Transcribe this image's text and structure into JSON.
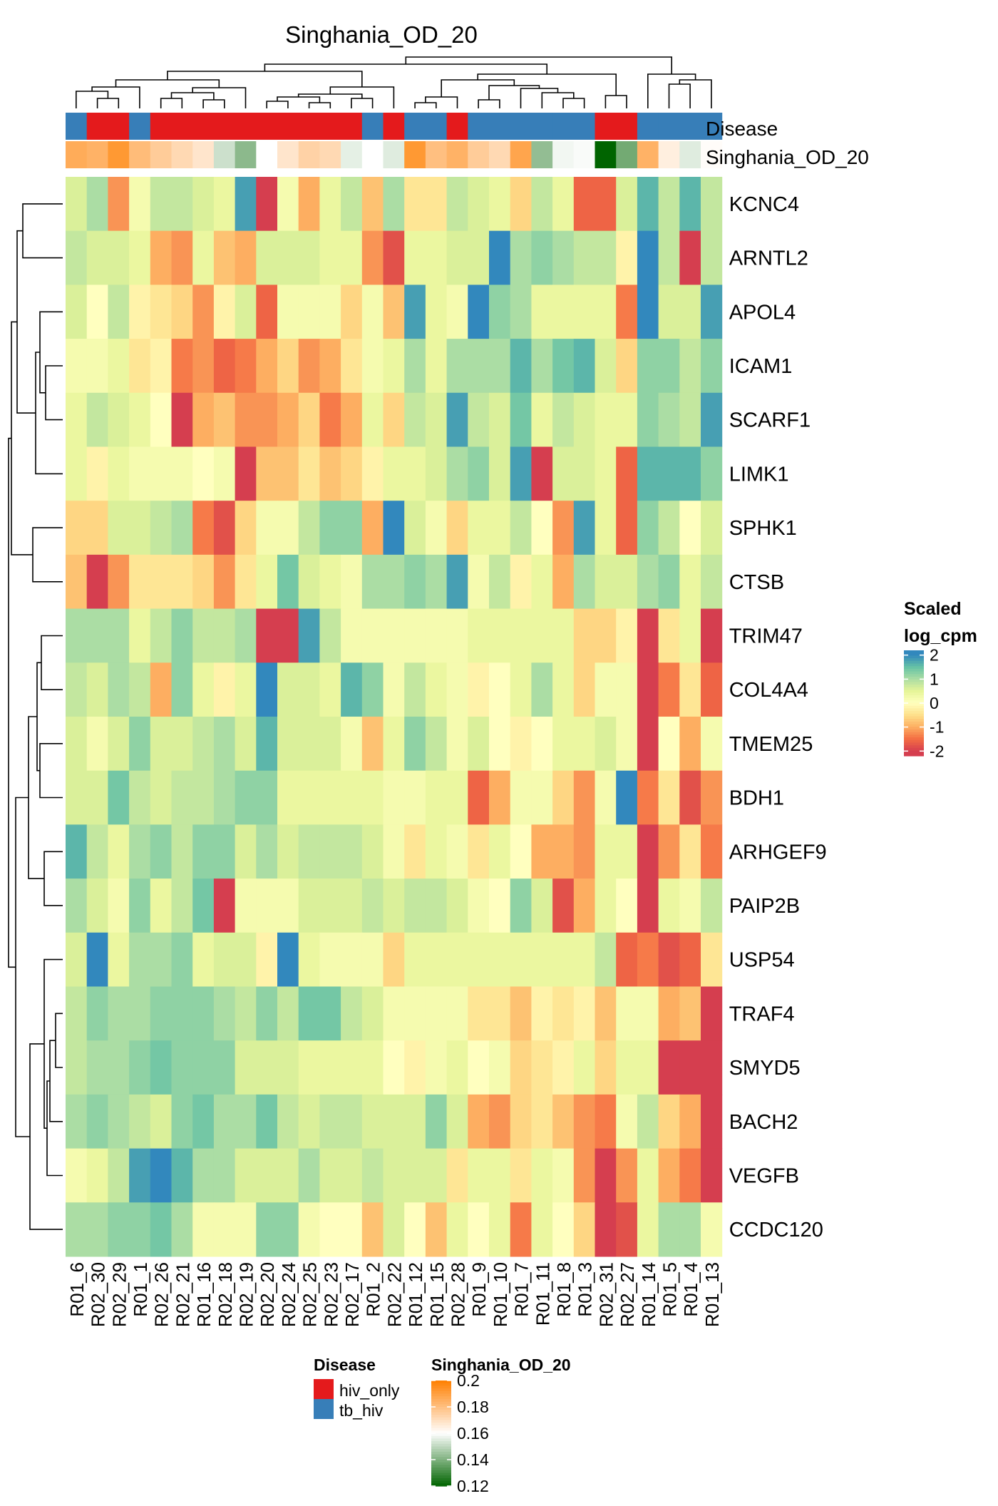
{
  "chart_data": {
    "type": "heatmap",
    "title": "Singhania_OD_20",
    "annotation_rows": [
      "Disease",
      "Singhania_OD_20"
    ],
    "columns": [
      "R01_6",
      "R02_30",
      "R02_29",
      "R01_1",
      "R02_26",
      "R02_21",
      "R01_16",
      "R02_18",
      "R02_19",
      "R02_20",
      "R02_24",
      "R02_25",
      "R02_23",
      "R02_17",
      "R01_2",
      "R02_22",
      "R01_12",
      "R01_15",
      "R02_28",
      "R01_9",
      "R01_10",
      "R01_7",
      "R01_11",
      "R01_8",
      "R01_3",
      "R02_31",
      "R02_27",
      "R01_14",
      "R01_5",
      "R01_4",
      "R01_13"
    ],
    "rows": [
      "KCNC4",
      "ARNTL2",
      "APOL4",
      "ICAM1",
      "SCARF1",
      "LIMK1",
      "SPHK1",
      "CTSB",
      "TRIM47",
      "COL4A4",
      "TMEM25",
      "BDH1",
      "ARHGEF9",
      "PAIP2B",
      "USP54",
      "TRAF4",
      "SMYD5",
      "BACH2",
      "VEGFB",
      "CCDC120"
    ],
    "disease": [
      "tb_hiv",
      "hiv_only",
      "hiv_only",
      "tb_hiv",
      "hiv_only",
      "hiv_only",
      "hiv_only",
      "hiv_only",
      "hiv_only",
      "hiv_only",
      "hiv_only",
      "hiv_only",
      "hiv_only",
      "hiv_only",
      "tb_hiv",
      "hiv_only",
      "tb_hiv",
      "tb_hiv",
      "hiv_only",
      "tb_hiv",
      "tb_hiv",
      "tb_hiv",
      "tb_hiv",
      "tb_hiv",
      "tb_hiv",
      "hiv_only",
      "hiv_only",
      "tb_hiv",
      "tb_hiv",
      "tb_hiv",
      "tb_hiv"
    ],
    "score": [
      0.186,
      0.184,
      0.192,
      0.181,
      0.176,
      0.172,
      0.168,
      0.152,
      0.142,
      0.16,
      0.168,
      0.174,
      0.172,
      0.156,
      0.16,
      0.155,
      0.192,
      0.18,
      0.184,
      0.176,
      0.172,
      0.188,
      0.143,
      0.158,
      0.159,
      0.12,
      0.138,
      0.184,
      0.165,
      0.155,
      0.161
    ],
    "values": [
      [
        0.6,
        1.0,
        -1.2,
        0.2,
        0.8,
        0.8,
        0.6,
        0.4,
        1.8,
        -2.0,
        0.2,
        -1.0,
        0.4,
        0.8,
        -0.8,
        1.0,
        -0.4,
        -0.4,
        0.8,
        0.6,
        0.4,
        -0.6,
        0.8,
        0.4,
        -1.6,
        -1.6,
        0.6,
        1.6,
        0.8,
        1.6,
        0.8
      ],
      [
        0.8,
        0.6,
        0.6,
        0.4,
        -1.0,
        -1.2,
        0.4,
        -0.8,
        -1.0,
        0.6,
        0.6,
        0.6,
        0.4,
        0.4,
        -1.2,
        -1.8,
        0.4,
        0.4,
        0.6,
        0.6,
        2.0,
        1.0,
        1.2,
        1.0,
        0.8,
        0.8,
        -0.2,
        2.0,
        0.8,
        -2.0,
        0.8
      ],
      [
        0.6,
        0.0,
        0.8,
        -0.2,
        -0.4,
        -0.6,
        -1.2,
        -0.2,
        0.6,
        -1.6,
        0.2,
        0.2,
        0.2,
        -0.6,
        0.2,
        -0.8,
        1.8,
        0.4,
        0.2,
        2.0,
        1.2,
        1.0,
        0.4,
        0.4,
        0.4,
        0.4,
        -1.4,
        2.2,
        0.6,
        0.6,
        1.8
      ],
      [
        0.2,
        0.2,
        0.4,
        -0.4,
        -0.2,
        -1.4,
        -1.2,
        -1.6,
        -1.4,
        -1.0,
        -0.6,
        -1.2,
        -1.0,
        -0.4,
        0.2,
        0.4,
        1.0,
        0.4,
        1.0,
        1.0,
        1.0,
        1.6,
        1.0,
        1.4,
        1.6,
        0.6,
        -0.6,
        1.2,
        1.2,
        0.8,
        1.2
      ],
      [
        0.4,
        0.8,
        0.6,
        0.4,
        0.0,
        -2.0,
        -1.0,
        -0.8,
        -1.2,
        -1.2,
        -1.0,
        -0.6,
        -1.4,
        -1.0,
        0.4,
        -0.6,
        0.8,
        0.6,
        1.8,
        0.8,
        0.6,
        1.4,
        0.4,
        0.8,
        0.6,
        0.4,
        0.4,
        1.2,
        1.0,
        0.8,
        1.8
      ],
      [
        0.4,
        -0.2,
        0.4,
        0.2,
        0.2,
        0.2,
        0.0,
        0.2,
        -2.0,
        -0.8,
        -0.8,
        -0.4,
        -0.8,
        -0.6,
        -0.2,
        0.4,
        0.4,
        0.6,
        1.0,
        1.2,
        0.6,
        1.8,
        -2.0,
        0.6,
        0.6,
        0.4,
        -1.6,
        1.6,
        1.6,
        1.6,
        1.2
      ],
      [
        -0.6,
        -0.6,
        0.6,
        0.6,
        0.8,
        1.0,
        -1.4,
        -1.8,
        -0.6,
        0.2,
        0.2,
        0.8,
        1.2,
        1.2,
        -1.0,
        2.0,
        0.6,
        0.2,
        -0.6,
        0.4,
        0.4,
        0.8,
        0.0,
        -1.2,
        1.8,
        0.4,
        -1.6,
        1.2,
        0.8,
        0.0,
        0.6
      ],
      [
        -0.8,
        -2.0,
        -1.2,
        -0.4,
        -0.4,
        -0.4,
        -0.6,
        -1.2,
        -0.4,
        0.4,
        1.4,
        0.6,
        0.4,
        0.2,
        1.0,
        1.0,
        1.2,
        1.0,
        1.8,
        0.2,
        0.8,
        -0.2,
        0.4,
        -1.0,
        1.0,
        0.6,
        0.6,
        1.0,
        1.2,
        0.4,
        0.8
      ],
      [
        1.0,
        1.0,
        1.0,
        0.4,
        0.8,
        1.2,
        0.8,
        0.8,
        1.0,
        -2.0,
        -2.0,
        1.8,
        0.8,
        0.2,
        0.2,
        0.2,
        0.2,
        0.2,
        0.2,
        0.4,
        0.4,
        0.4,
        0.4,
        0.4,
        -0.6,
        -0.6,
        -0.2,
        -2.0,
        -0.4,
        0.4,
        -2.0
      ],
      [
        0.8,
        0.6,
        1.0,
        0.8,
        -1.0,
        1.2,
        0.4,
        -0.2,
        0.4,
        2.2,
        0.6,
        0.6,
        0.4,
        1.6,
        1.2,
        0.2,
        0.8,
        0.4,
        0.2,
        -0.2,
        0.0,
        0.4,
        1.0,
        0.4,
        -0.6,
        0.2,
        0.2,
        -2.0,
        -1.4,
        -0.4,
        -1.6
      ],
      [
        0.6,
        0.2,
        0.6,
        1.2,
        0.6,
        0.6,
        0.8,
        1.0,
        0.6,
        1.6,
        0.6,
        0.6,
        0.6,
        0.2,
        -0.8,
        0.4,
        1.2,
        0.8,
        0.2,
        0.6,
        0.0,
        -0.2,
        0.0,
        0.4,
        0.4,
        0.6,
        0.2,
        -2.0,
        0.0,
        -1.0,
        0.2
      ],
      [
        0.6,
        0.6,
        1.4,
        0.8,
        0.6,
        0.8,
        0.8,
        1.0,
        1.2,
        1.2,
        0.4,
        0.4,
        0.4,
        0.4,
        0.4,
        0.2,
        0.2,
        0.4,
        0.4,
        -1.6,
        -1.0,
        0.2,
        0.2,
        -0.6,
        -1.2,
        0.2,
        2.0,
        -1.4,
        -0.4,
        -1.8,
        -1.2
      ],
      [
        1.6,
        0.8,
        0.4,
        1.0,
        1.2,
        0.8,
        1.2,
        1.2,
        0.6,
        1.0,
        0.6,
        0.8,
        0.8,
        0.8,
        0.6,
        0.2,
        -0.4,
        0.4,
        0.2,
        -0.4,
        0.4,
        0.0,
        -1.0,
        -1.0,
        -1.2,
        0.4,
        0.4,
        -2.0,
        -1.2,
        -0.4,
        -1.4
      ],
      [
        1.0,
        0.6,
        0.2,
        1.2,
        0.4,
        0.8,
        1.4,
        -2.0,
        0.2,
        0.2,
        0.2,
        0.6,
        0.6,
        0.6,
        0.8,
        0.6,
        0.8,
        0.8,
        0.6,
        0.2,
        0.0,
        1.2,
        0.6,
        -1.8,
        -1.0,
        0.4,
        0.0,
        -2.0,
        0.4,
        0.2,
        0.8
      ],
      [
        0.6,
        2.0,
        0.4,
        1.0,
        1.0,
        1.2,
        0.4,
        0.6,
        0.6,
        -0.2,
        2.0,
        0.4,
        0.2,
        0.2,
        0.2,
        -0.6,
        0.4,
        0.4,
        0.4,
        0.4,
        0.4,
        0.4,
        0.4,
        0.4,
        0.4,
        0.8,
        -1.6,
        -1.4,
        -1.8,
        -1.6,
        -0.4
      ],
      [
        0.8,
        1.2,
        1.0,
        1.0,
        1.2,
        1.2,
        1.2,
        1.0,
        0.8,
        1.2,
        0.8,
        1.4,
        1.4,
        0.8,
        0.6,
        0.2,
        0.2,
        0.2,
        0.2,
        -0.4,
        -0.4,
        -0.8,
        -0.2,
        -0.4,
        -0.2,
        -0.8,
        0.2,
        0.2,
        -1.0,
        -0.8,
        -2.0
      ],
      [
        0.8,
        1.0,
        1.0,
        1.2,
        1.4,
        1.2,
        1.2,
        1.2,
        0.6,
        0.6,
        0.6,
        0.4,
        0.4,
        0.4,
        0.4,
        0.0,
        -0.2,
        0.2,
        0.4,
        0.0,
        0.2,
        -0.6,
        -0.4,
        -0.2,
        0.4,
        -0.6,
        0.4,
        0.4,
        -2.0,
        -2.0,
        -2.0
      ],
      [
        1.0,
        1.2,
        1.0,
        0.8,
        0.6,
        1.2,
        1.4,
        1.0,
        1.0,
        1.4,
        0.8,
        0.6,
        0.8,
        0.8,
        0.6,
        0.6,
        0.6,
        1.2,
        0.6,
        -1.0,
        -1.2,
        -0.6,
        -0.4,
        -0.8,
        -1.2,
        -1.4,
        0.2,
        0.8,
        -0.6,
        -1.0,
        -2.0
      ],
      [
        0.2,
        0.4,
        0.8,
        1.8,
        2.0,
        1.6,
        1.0,
        1.0,
        0.6,
        0.6,
        0.6,
        1.0,
        0.6,
        0.6,
        0.8,
        0.6,
        0.6,
        0.6,
        -0.4,
        0.4,
        0.4,
        -0.4,
        0.4,
        0.2,
        -1.2,
        -2.0,
        -1.2,
        0.4,
        -1.0,
        -1.4,
        -2.0
      ],
      [
        1.0,
        1.0,
        1.2,
        1.2,
        1.4,
        1.0,
        0.2,
        0.2,
        0.2,
        1.2,
        1.2,
        0.2,
        0.0,
        0.0,
        -0.8,
        0.6,
        0.0,
        -0.8,
        0.4,
        0.0,
        0.4,
        -1.4,
        0.4,
        0.0,
        -0.6,
        -2.0,
        -1.8,
        0.4,
        1.0,
        1.0,
        0.2
      ]
    ],
    "legend_heat": {
      "title_line1": "Scaled",
      "title_line2": "log_cpm",
      "ticks": [
        "2",
        "1",
        "0",
        "-1",
        "-2"
      ]
    },
    "legend_disease": {
      "title": "Disease",
      "levels": [
        "hiv_only",
        "tb_hiv"
      ]
    },
    "legend_score": {
      "title": "Singhania_OD_20",
      "ticks": [
        "0.2",
        "0.18",
        "0.16",
        "0.14",
        "0.12"
      ]
    },
    "colors": {
      "hiv_only": "#E41A1C",
      "tb_hiv": "#377EB8",
      "score_high": "#FF7F00",
      "score_mid": "#FFFFFF",
      "score_low": "#006400",
      "heat_scale": [
        "#D53E4F",
        "#F46D43",
        "#FDAE61",
        "#FEE08B",
        "#FFFFBF",
        "#E6F598",
        "#ABDDA4",
        "#66C2A5",
        "#3288BD"
      ]
    }
  }
}
